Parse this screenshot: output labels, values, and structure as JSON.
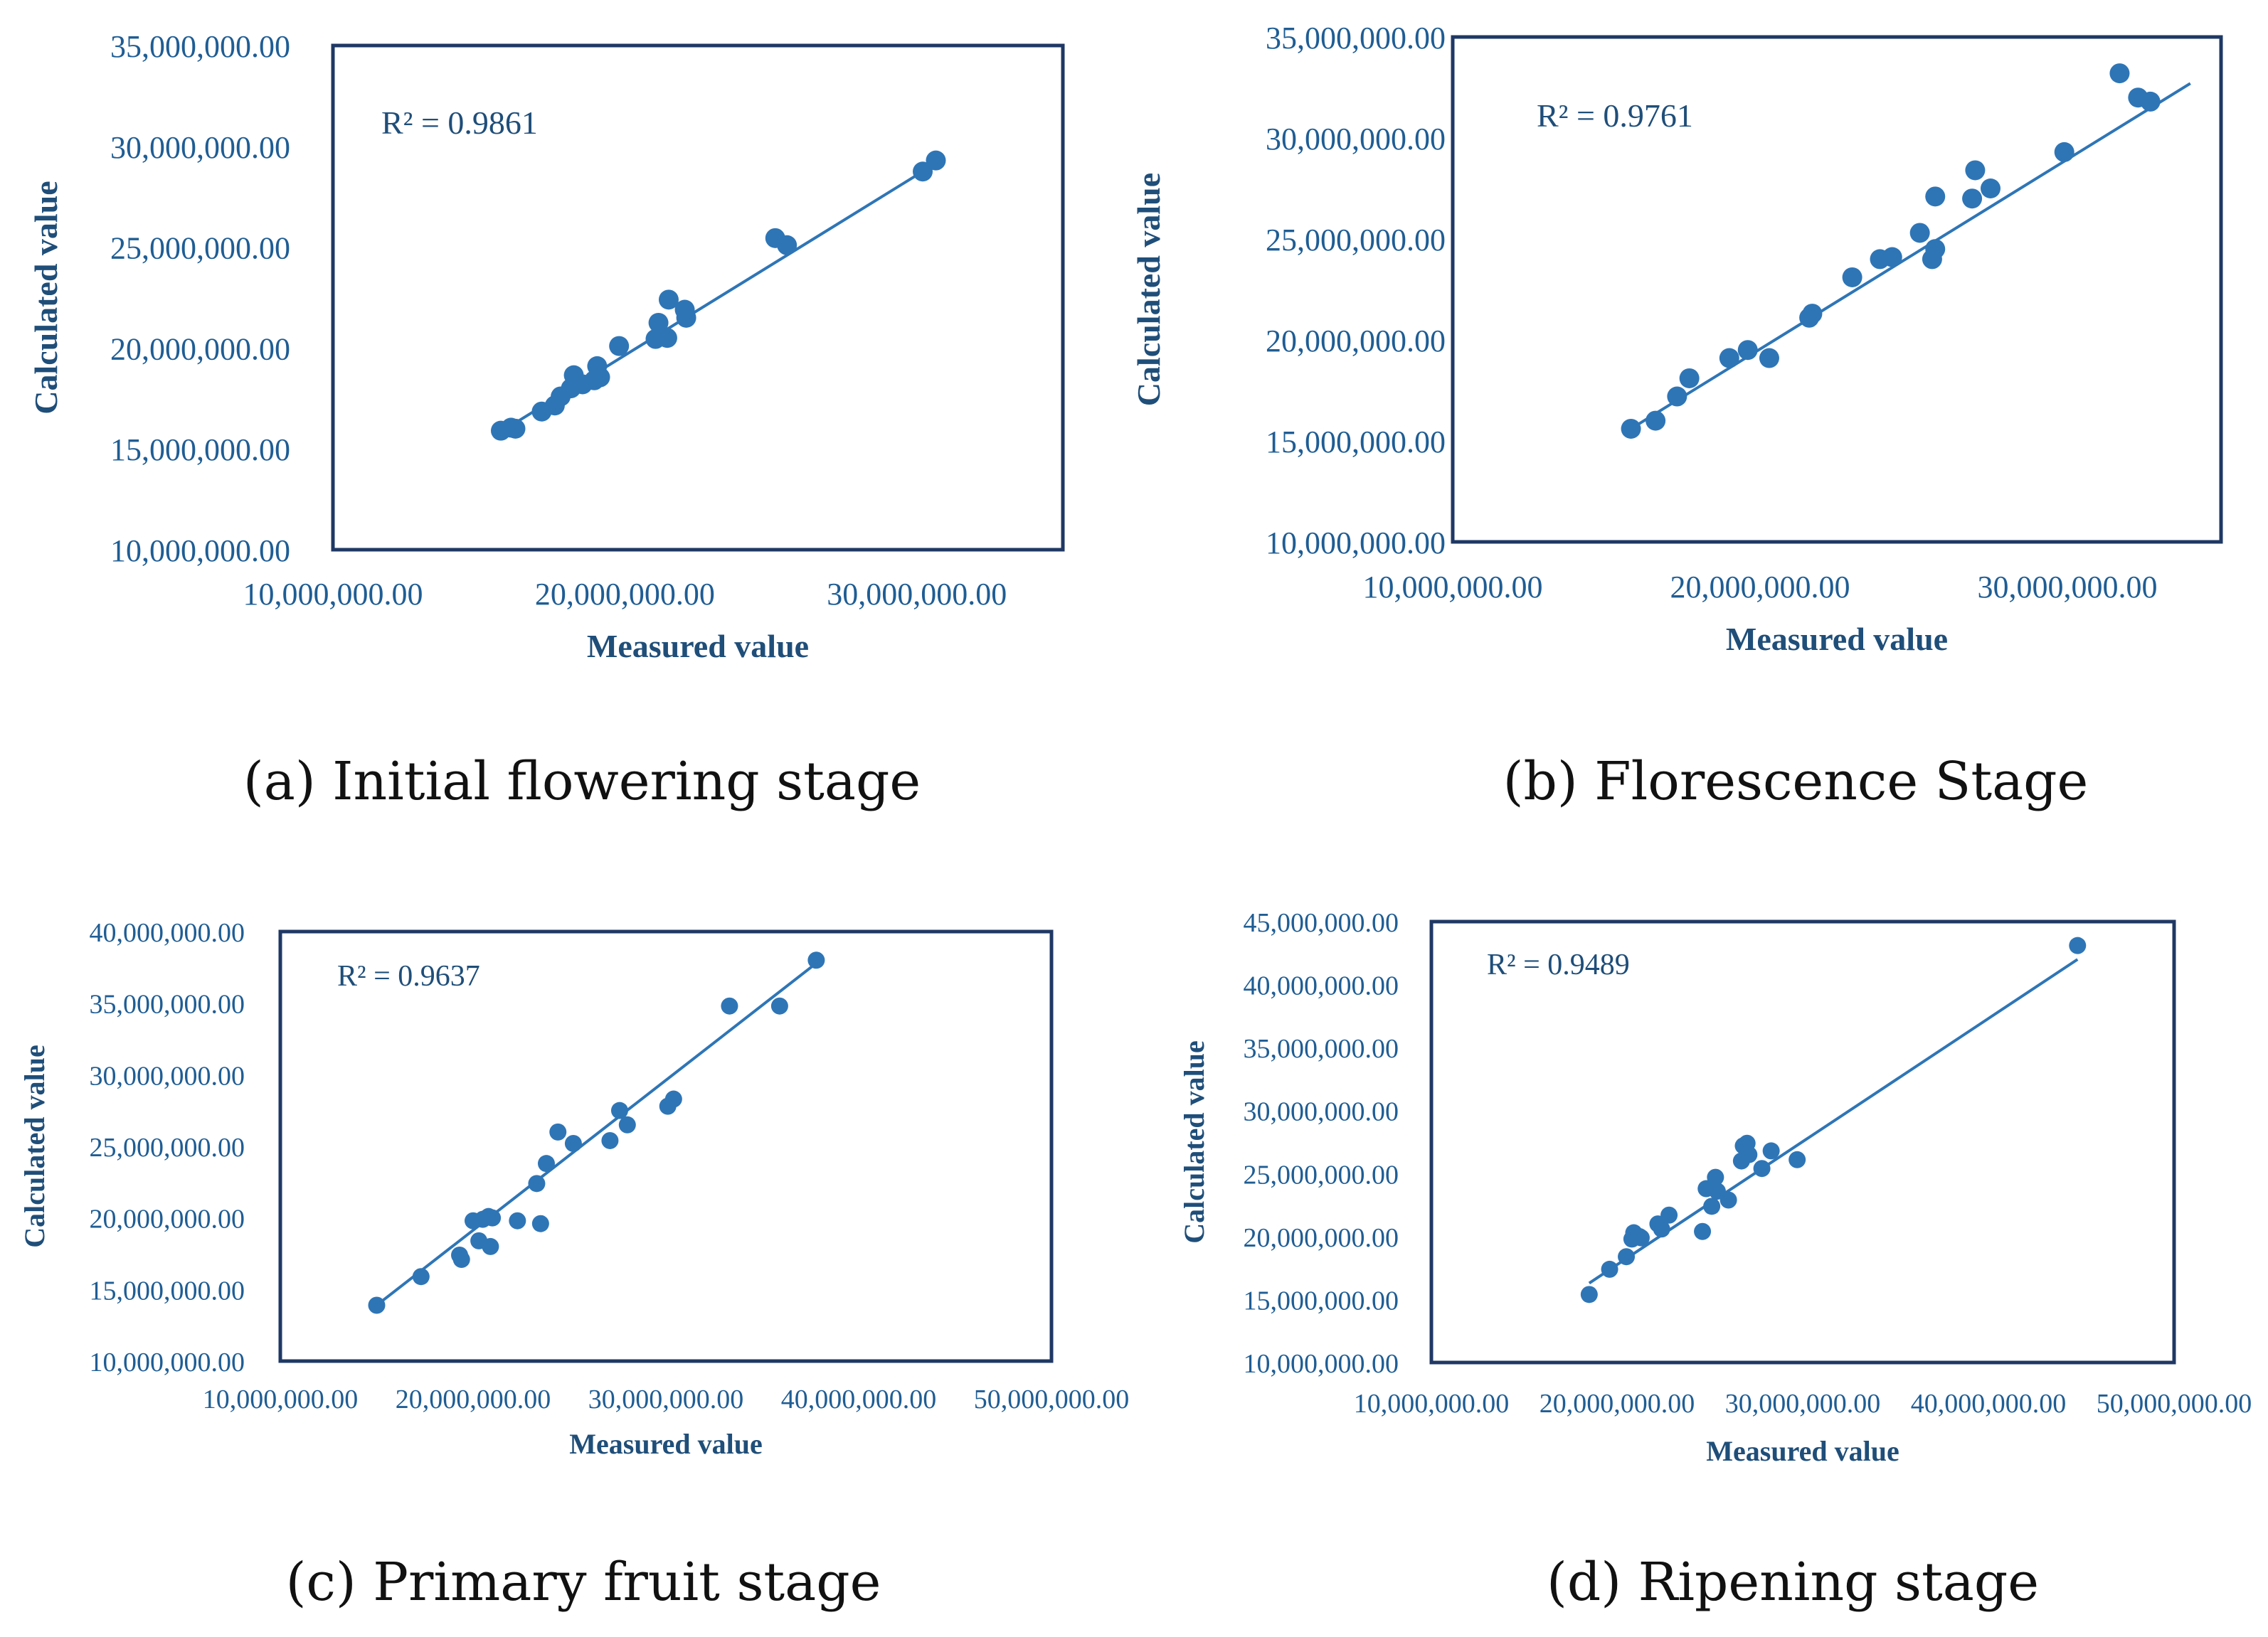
{
  "colors": {
    "point": "#2e75b6",
    "frame": "#1f3864",
    "tick": "#1f5d94",
    "title": "#1f4e79"
  },
  "chart_data": [
    {
      "type": "scatter",
      "caption": "(a) Initial flowering stage",
      "xlabel": "Measured value",
      "ylabel": "Calculated  value",
      "annotation": "R² = 0.9861",
      "xlim": [
        10000000,
        35000000
      ],
      "ylim": [
        10000000,
        35000000
      ],
      "xticks": [
        10000000,
        20000000,
        30000000
      ],
      "xtick_labels": [
        "10,000,000.00",
        "20,000,000.00",
        "30,000,000.00"
      ],
      "yticks": [
        10000000,
        15000000,
        20000000,
        25000000,
        30000000,
        35000000
      ],
      "ytick_labels": [
        "10,000,000.00",
        "15,000,000.00",
        "20,000,000.00",
        "25,000,000.00",
        "30,000,000.00",
        "35,000,000.00"
      ],
      "trendline": {
        "x": [
          15700000,
          30700000
        ],
        "y": [
          15800000,
          29200000
        ]
      },
      "points": [
        [
          15750000,
          15900000
        ],
        [
          16100000,
          16050000
        ],
        [
          16250000,
          16000000
        ],
        [
          17150000,
          16850000
        ],
        [
          17600000,
          17150000
        ],
        [
          17800000,
          17600000
        ],
        [
          18150000,
          18000000
        ],
        [
          18250000,
          18650000
        ],
        [
          18550000,
          18200000
        ],
        [
          18950000,
          18400000
        ],
        [
          19050000,
          19100000
        ],
        [
          19150000,
          18550000
        ],
        [
          19800000,
          20100000
        ],
        [
          21050000,
          20450000
        ],
        [
          21150000,
          21250000
        ],
        [
          21450000,
          20500000
        ],
        [
          21500000,
          22400000
        ],
        [
          22050000,
          21900000
        ],
        [
          22100000,
          21500000
        ],
        [
          25150000,
          25450000
        ],
        [
          25550000,
          25100000
        ],
        [
          30200000,
          28750000
        ],
        [
          30650000,
          29300000
        ]
      ]
    },
    {
      "type": "scatter",
      "caption": "(b) Florescence Stage",
      "xlabel": "Measured value",
      "ylabel": "Calculated  value",
      "annotation": "R² = 0.9761",
      "xlim": [
        10000000,
        35000000
      ],
      "ylim": [
        10000000,
        35000000
      ],
      "xticks": [
        10000000,
        20000000,
        30000000
      ],
      "xtick_labels": [
        "10,000,000.00",
        "20,000,000.00",
        "30,000,000.00"
      ],
      "yticks": [
        10000000,
        15000000,
        20000000,
        25000000,
        30000000,
        35000000
      ],
      "ytick_labels": [
        "10,000,000.00",
        "15,000,000.00",
        "20,000,000.00",
        "25,000,000.00",
        "30,000,000.00",
        "35,000,000.00"
      ],
      "trendline": {
        "x": [
          15800000,
          34000000
        ],
        "y": [
          15600000,
          32700000
        ]
      },
      "points": [
        [
          15800000,
          15600000
        ],
        [
          16600000,
          16000000
        ],
        [
          17300000,
          17200000
        ],
        [
          17700000,
          18100000
        ],
        [
          19000000,
          19100000
        ],
        [
          19600000,
          19500000
        ],
        [
          20300000,
          19100000
        ],
        [
          21600000,
          21100000
        ],
        [
          21700000,
          21300000
        ],
        [
          23000000,
          23100000
        ],
        [
          23900000,
          24000000
        ],
        [
          24300000,
          24100000
        ],
        [
          25200000,
          25300000
        ],
        [
          25600000,
          24000000
        ],
        [
          25700000,
          24500000
        ],
        [
          25700000,
          27100000
        ],
        [
          26900000,
          27000000
        ],
        [
          27000000,
          28400000
        ],
        [
          27500000,
          27500000
        ],
        [
          29900000,
          29300000
        ],
        [
          31700000,
          33200000
        ],
        [
          32300000,
          32000000
        ],
        [
          32700000,
          31800000
        ]
      ]
    },
    {
      "type": "scatter",
      "caption": "(c) Primary fruit stage",
      "xlabel": "Measured value",
      "ylabel": "Calculated  value",
      "annotation": "R² = 0.9637",
      "xlim": [
        10000000,
        50000000
      ],
      "ylim": [
        10000000,
        40000000
      ],
      "xticks": [
        10000000,
        20000000,
        30000000,
        40000000,
        50000000
      ],
      "xtick_labels": [
        "10,000,000.00",
        "20,000,000.00",
        "30,000,000.00",
        "40,000,000.00",
        "50,000,000.00"
      ],
      "yticks": [
        10000000,
        15000000,
        20000000,
        25000000,
        30000000,
        35000000,
        40000000
      ],
      "ytick_labels": [
        "10,000,000.00",
        "15,000,000.00",
        "20,000,000.00",
        "25,000,000.00",
        "30,000,000.00",
        "35,000,000.00",
        "40,000,000.00"
      ],
      "trendline": {
        "x": [
          15000000,
          38000000
        ],
        "y": [
          13900000,
          38000000
        ]
      },
      "points": [
        [
          15000000,
          13900000
        ],
        [
          17300000,
          15900000
        ],
        [
          19300000,
          17400000
        ],
        [
          19400000,
          17100000
        ],
        [
          20000000,
          19800000
        ],
        [
          20300000,
          18400000
        ],
        [
          20500000,
          19900000
        ],
        [
          20800000,
          20100000
        ],
        [
          20900000,
          18000000
        ],
        [
          21000000,
          20000000
        ],
        [
          22300000,
          19800000
        ],
        [
          23300000,
          22400000
        ],
        [
          23500000,
          19600000
        ],
        [
          23800000,
          23800000
        ],
        [
          24400000,
          26000000
        ],
        [
          25200000,
          25200000
        ],
        [
          27100000,
          25400000
        ],
        [
          27600000,
          27500000
        ],
        [
          28000000,
          26500000
        ],
        [
          30100000,
          27800000
        ],
        [
          30400000,
          28300000
        ],
        [
          33300000,
          34800000
        ],
        [
          35900000,
          34800000
        ],
        [
          37800000,
          38000000
        ]
      ]
    },
    {
      "type": "scatter",
      "caption": "(d) Ripening stage",
      "xlabel": "Measured value",
      "ylabel": "Calculated value",
      "annotation": "R² = 0.9489",
      "xlim": [
        10000000,
        50000000
      ],
      "ylim": [
        10000000,
        45000000
      ],
      "xticks": [
        10000000,
        20000000,
        30000000,
        40000000,
        50000000
      ],
      "xtick_labels": [
        "10,000,000.00",
        "20,000,000.00",
        "30,000,000.00",
        "40,000,000.00",
        "50,000,000.00"
      ],
      "yticks": [
        10000000,
        15000000,
        20000000,
        25000000,
        30000000,
        35000000,
        40000000,
        45000000
      ],
      "ytick_labels": [
        "10,000,000.00",
        "15,000,000.00",
        "20,000,000.00",
        "25,000,000.00",
        "30,000,000.00",
        "35,000,000.00",
        "40,000,000.00",
        "45,000,000.00"
      ],
      "trendline": {
        "x": [
          18500000,
          44800000
        ],
        "y": [
          16300000,
          42000000
        ]
      },
      "points": [
        [
          18500000,
          15400000
        ],
        [
          19600000,
          17400000
        ],
        [
          20500000,
          18400000
        ],
        [
          20800000,
          19800000
        ],
        [
          20900000,
          20300000
        ],
        [
          21200000,
          20000000
        ],
        [
          21300000,
          19900000
        ],
        [
          22200000,
          21000000
        ],
        [
          22400000,
          20600000
        ],
        [
          22800000,
          21700000
        ],
        [
          24600000,
          20400000
        ],
        [
          24800000,
          23800000
        ],
        [
          25100000,
          22400000
        ],
        [
          25300000,
          24700000
        ],
        [
          25400000,
          23600000
        ],
        [
          26000000,
          22900000
        ],
        [
          26700000,
          26000000
        ],
        [
          26800000,
          27200000
        ],
        [
          27000000,
          27400000
        ],
        [
          27100000,
          26500000
        ],
        [
          27800000,
          25400000
        ],
        [
          28300000,
          26800000
        ],
        [
          29700000,
          26100000
        ],
        [
          44800000,
          43100000
        ]
      ]
    }
  ]
}
